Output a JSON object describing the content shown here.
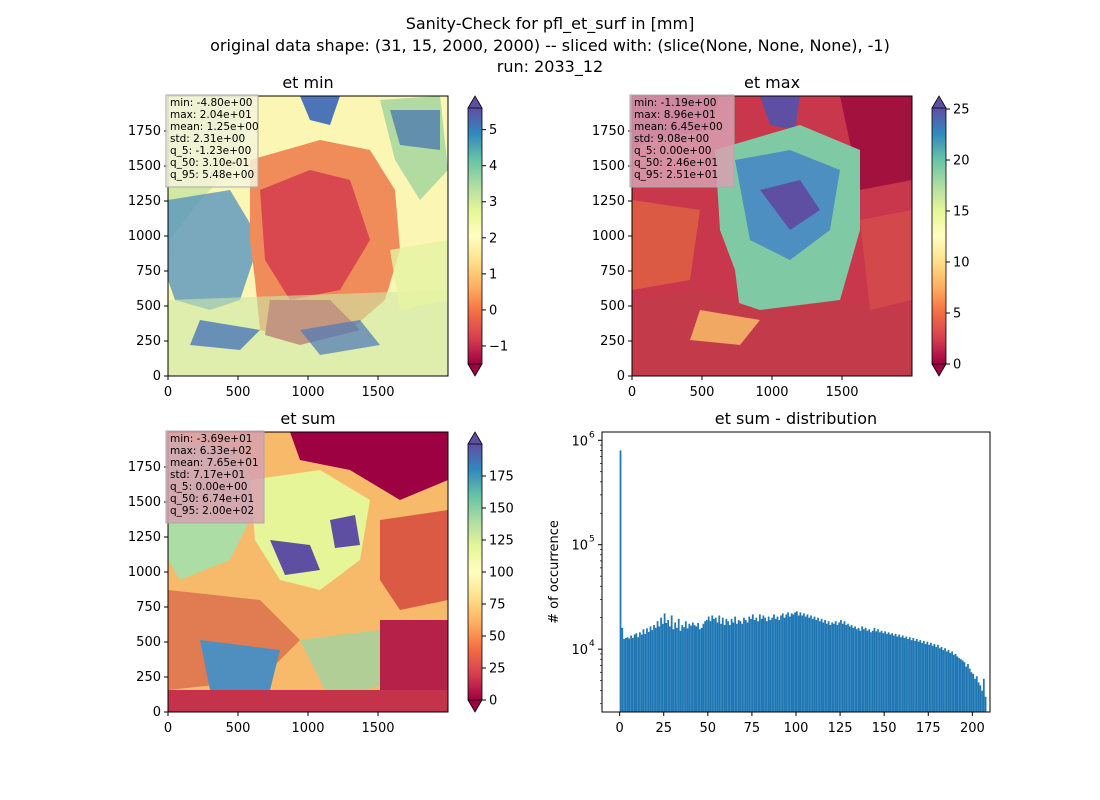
{
  "figure": {
    "title_lines": [
      "Sanity-Check for pfl_et_surf in [mm]",
      "original data shape: (31, 15, 2000, 2000) -- sliced with: (slice(None, None, None), -1)",
      "run: 2033_12"
    ]
  },
  "chart_data": [
    {
      "type": "heatmap",
      "title": "et min",
      "colormap": "Spectral",
      "x_ticks": [
        0,
        500,
        1000,
        1500
      ],
      "y_ticks": [
        0,
        250,
        500,
        750,
        1000,
        1250,
        1500,
        1750
      ],
      "xlim": [
        0,
        2000
      ],
      "ylim": [
        0,
        2000
      ],
      "colorbar": {
        "ticks": [
          -1,
          0,
          1,
          2,
          3,
          4,
          5
        ],
        "tick_labels": [
          "−1",
          "0",
          "1",
          "2",
          "3",
          "4",
          "5"
        ],
        "range": [
          -1.5,
          5.6
        ],
        "extend": "both"
      },
      "stats": [
        "min: -4.80e+00",
        "max: 2.04e+01",
        "mean: 1.25e+00",
        "std: 2.31e+00",
        "q_5: -1.23e+00",
        "q_50: 3.10e-01",
        "q_95: 5.48e+00"
      ],
      "stats_box_color": "#f5f5dc"
    },
    {
      "type": "heatmap",
      "title": "et max",
      "colormap": "Spectral",
      "x_ticks": [
        0,
        500,
        1000,
        1500
      ],
      "y_ticks": [
        0,
        250,
        500,
        750,
        1000,
        1250,
        1500,
        1750
      ],
      "xlim": [
        0,
        2000
      ],
      "ylim": [
        0,
        2000
      ],
      "colorbar": {
        "ticks": [
          0,
          5,
          10,
          15,
          20,
          25
        ],
        "tick_labels": [
          "0",
          "5",
          "10",
          "15",
          "20",
          "25"
        ],
        "range": [
          0,
          25.1
        ],
        "extend": "both"
      },
      "stats": [
        "min: -1.19e+00",
        "max: 8.96e+01",
        "mean: 6.45e+00",
        "std: 9.08e+00",
        "q_5: 0.00e+00",
        "q_50: 2.46e+01",
        "q_95: 2.51e+01"
      ],
      "stats_box_color": "#d8a0b0"
    },
    {
      "type": "heatmap",
      "title": "et sum",
      "colormap": "Spectral",
      "x_ticks": [
        0,
        500,
        1000,
        1500
      ],
      "y_ticks": [
        0,
        250,
        500,
        750,
        1000,
        1250,
        1500,
        1750
      ],
      "xlim": [
        0,
        2000
      ],
      "ylim": [
        0,
        2000
      ],
      "colorbar": {
        "ticks": [
          0,
          25,
          50,
          75,
          100,
          125,
          150,
          175
        ],
        "tick_labels": [
          "0",
          "25",
          "50",
          "75",
          "100",
          "125",
          "150",
          "175"
        ],
        "range": [
          0,
          200
        ],
        "extend": "both"
      },
      "stats": [
        "min: -3.69e+01",
        "max: 6.33e+02",
        "mean: 7.65e+01",
        "std: 7.17e+01",
        "q_5: 0.00e+00",
        "q_50: 6.74e+01",
        "q_95: 2.00e+02"
      ],
      "stats_box_color": "#d8a0b0"
    },
    {
      "type": "bar",
      "title": "et sum - distribution",
      "xlabel": "",
      "ylabel": "# of occurrence",
      "yscale": "log",
      "xlim": [
        -10,
        210
      ],
      "ylim": [
        2500,
        1200000
      ],
      "x_ticks": [
        0,
        25,
        50,
        75,
        100,
        125,
        150,
        175,
        200
      ],
      "y_ticks": [
        {
          "value": 10000,
          "base": "10",
          "exp": "4"
        },
        {
          "value": 100000,
          "base": "10",
          "exp": "5"
        },
        {
          "value": 1000000,
          "base": "10",
          "exp": "6"
        }
      ],
      "bin_width": 1,
      "bar_color": "#1f77b4",
      "bins_start": 0,
      "values": [
        800000,
        16000,
        12500,
        12800,
        13000,
        12600,
        13500,
        12800,
        13800,
        14200,
        13000,
        14500,
        13800,
        15500,
        14000,
        15800,
        14600,
        16500,
        15200,
        17000,
        16000,
        18500,
        16500,
        20000,
        17500,
        22000,
        17800,
        19000,
        16500,
        21000,
        15500,
        18000,
        16000,
        19500,
        15000,
        17000,
        16200,
        18500,
        15800,
        17500,
        16800,
        18000,
        17000,
        16500,
        17800,
        15500,
        16000,
        17500,
        18500,
        19000,
        20500,
        18500,
        21000,
        19500,
        20000,
        18000,
        21000,
        17500,
        20000,
        17000,
        19500,
        18500,
        17000,
        19500,
        18000,
        20500,
        17500,
        19000,
        18500,
        17500,
        20000,
        19000,
        18000,
        20500,
        19500,
        21500,
        19000,
        20000,
        18500,
        21500,
        19500,
        21000,
        20000,
        18500,
        20500,
        19000,
        20000,
        21500,
        19500,
        20500,
        19000,
        21000,
        22000,
        20000,
        21500,
        22500,
        20500,
        22000,
        21500,
        22500,
        23000,
        21000,
        22500,
        21000,
        22000,
        20500,
        21500,
        20000,
        21000,
        19500,
        20500,
        19000,
        20000,
        18500,
        19500,
        18000,
        19000,
        17500,
        18500,
        17000,
        18000,
        17500,
        18500,
        17000,
        18000,
        19000,
        17500,
        18500,
        17000,
        17500,
        16500,
        17000,
        16000,
        16500,
        15500,
        16000,
        15000,
        16500,
        15500,
        16000,
        15000,
        15500,
        14500,
        15000,
        16000,
        14800,
        15500,
        14500,
        15000,
        14200,
        14800,
        14000,
        14500,
        13800,
        14200,
        13500,
        14000,
        13200,
        13800,
        13000,
        13500,
        12800,
        13200,
        12500,
        13000,
        12200,
        12800,
        12000,
        12500,
        11800,
        12200,
        11500,
        12000,
        11200,
        11800,
        11000,
        11500,
        10800,
        11200,
        10500,
        11000,
        10200,
        10500,
        9800,
        10200,
        9500,
        9800,
        9200,
        9500,
        8800,
        9000,
        8500,
        8200,
        8000,
        7800,
        7500,
        6800,
        7200,
        6500,
        6000,
        5800,
        5200,
        5500,
        4800,
        4500,
        4000,
        5200,
        3500
      ]
    }
  ]
}
